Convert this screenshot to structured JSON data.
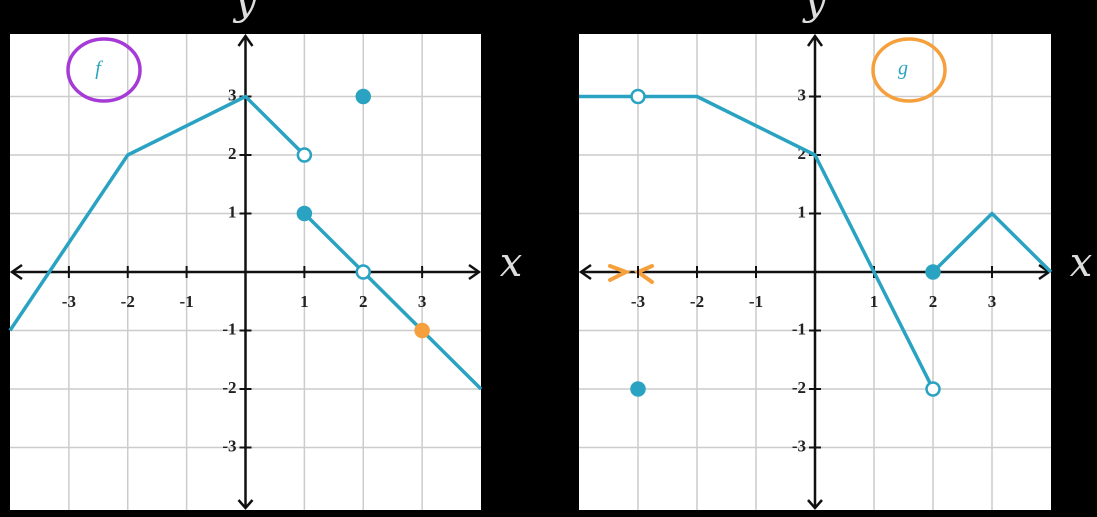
{
  "chart_data": [
    {
      "type": "line",
      "label": "f",
      "label_color": "#a63ad6",
      "x_label": "x",
      "y_label": "y",
      "xlim": [
        -4,
        4
      ],
      "ylim": [
        -4,
        4
      ],
      "xticks": [
        -3,
        -2,
        -1,
        1,
        2,
        3
      ],
      "yticks": [
        -3,
        -2,
        -1,
        1,
        2,
        3
      ],
      "grid": true,
      "series": [
        {
          "color": "#2aa3c2",
          "x": [
            -4,
            -2,
            0,
            1
          ],
          "values": [
            -1,
            2,
            3,
            2
          ]
        },
        {
          "color": "#2aa3c2",
          "x": [
            1,
            2,
            4
          ],
          "values": [
            1,
            0,
            -2
          ]
        }
      ],
      "points": [
        {
          "x": 1,
          "y": 2,
          "open": true,
          "color": "#2aa3c2"
        },
        {
          "x": 1,
          "y": 1,
          "open": false,
          "color": "#2aa3c2"
        },
        {
          "x": 2,
          "y": 0,
          "open": true,
          "color": "#2aa3c2"
        },
        {
          "x": 2,
          "y": 3,
          "open": false,
          "color": "#2aa3c2"
        },
        {
          "x": 3,
          "y": -1,
          "open": false,
          "color": "#f5a03c"
        }
      ]
    },
    {
      "type": "line",
      "label": "g",
      "label_color": "#f5a03c",
      "x_label": "x",
      "y_label": "y",
      "xlim": [
        -4,
        4
      ],
      "ylim": [
        -4,
        4
      ],
      "xticks": [
        -3,
        -2,
        -1,
        1,
        2,
        3
      ],
      "yticks": [
        -3,
        -2,
        -1,
        1,
        2,
        3
      ],
      "grid": true,
      "series": [
        {
          "color": "#2aa3c2",
          "x": [
            -4,
            -2,
            0,
            2
          ],
          "values": [
            3,
            3,
            2,
            -2
          ]
        },
        {
          "color": "#2aa3c2",
          "x": [
            2,
            3,
            4
          ],
          "values": [
            0,
            1,
            0
          ]
        }
      ],
      "points": [
        {
          "x": -3,
          "y": 3,
          "open": true,
          "color": "#2aa3c2"
        },
        {
          "x": -3,
          "y": -2,
          "open": false,
          "color": "#2aa3c2"
        },
        {
          "x": 2,
          "y": -2,
          "open": true,
          "color": "#2aa3c2"
        },
        {
          "x": 2,
          "y": 0,
          "open": false,
          "color": "#2aa3c2"
        }
      ]
    }
  ]
}
